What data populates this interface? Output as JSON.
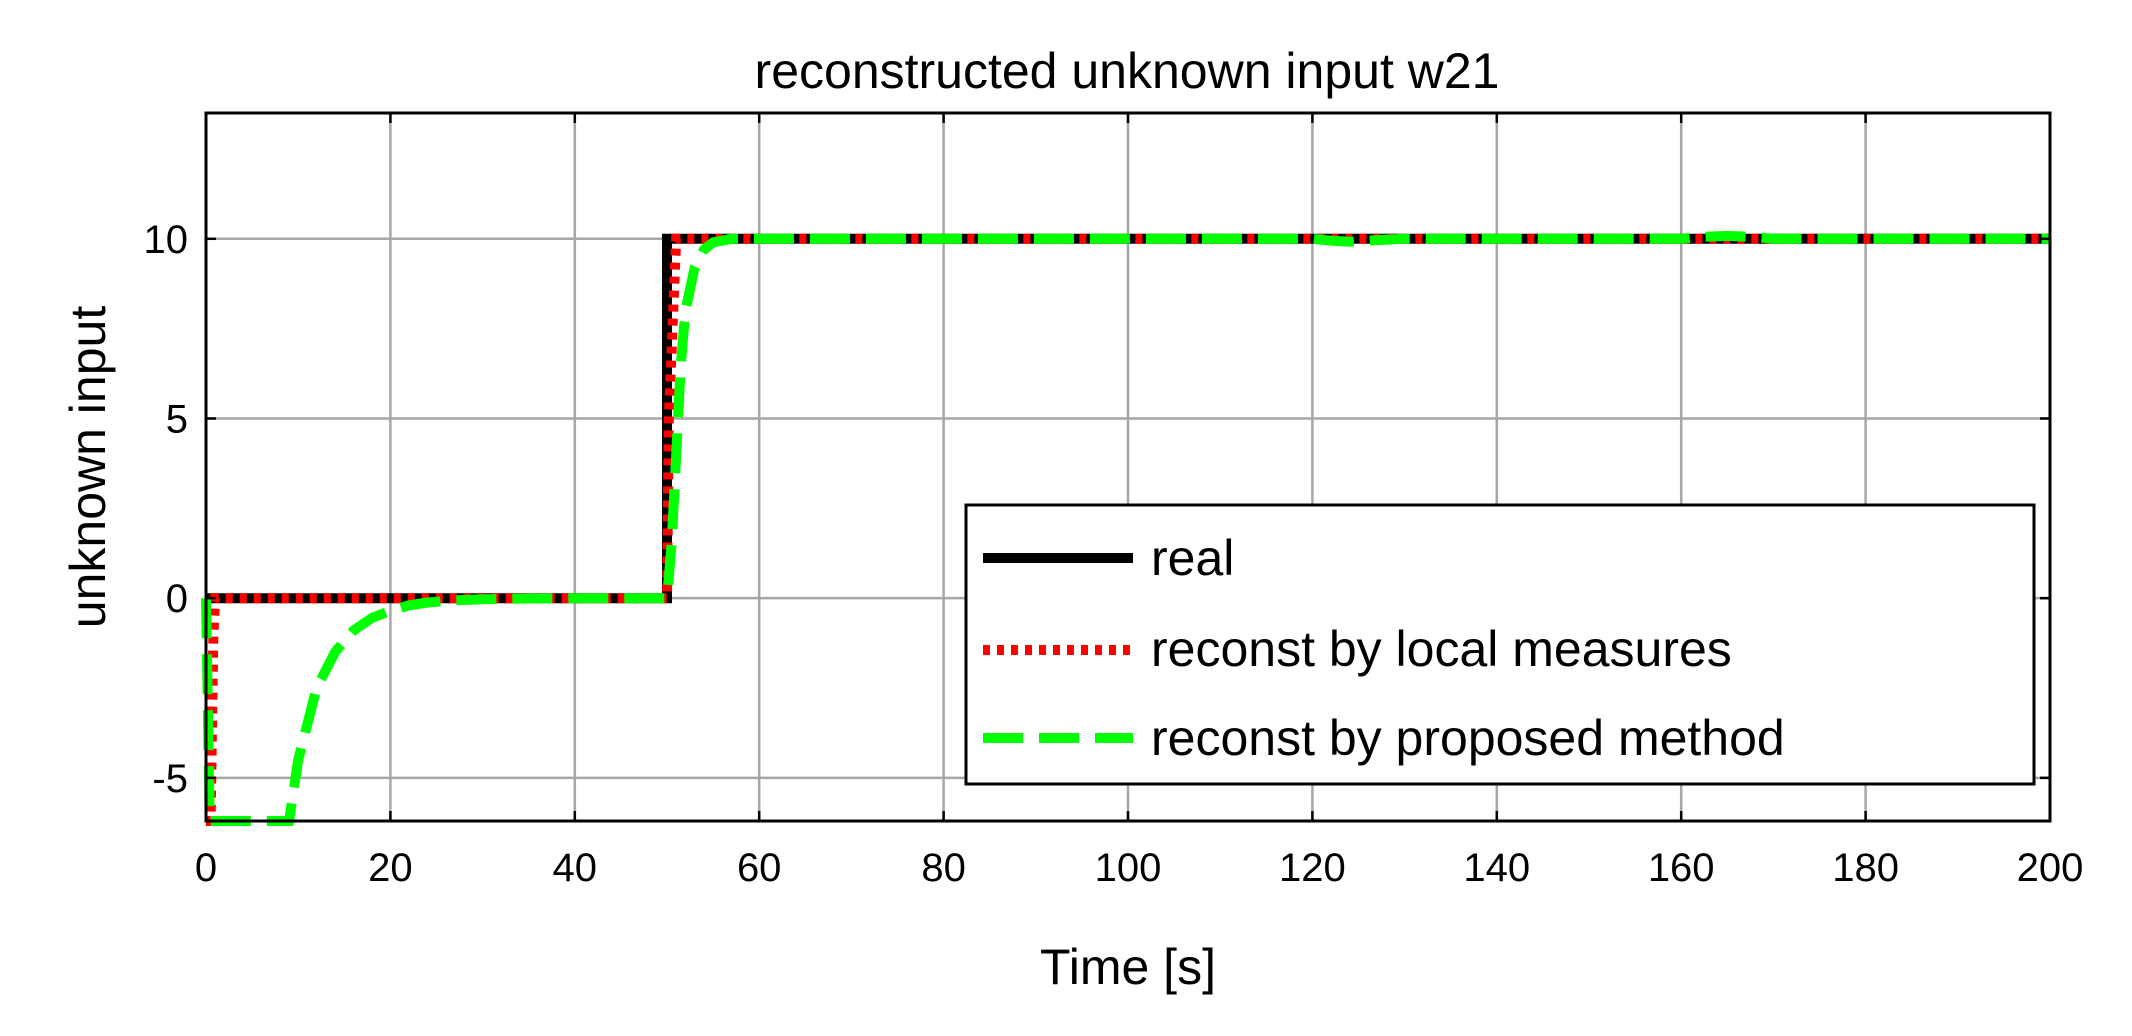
{
  "chart_data": {
    "type": "line",
    "title": "reconstructed unknown input w21",
    "xlabel": "Time [s]",
    "ylabel": "unknown input",
    "xlim": [
      0,
      200
    ],
    "ylim": [
      -6.2,
      13.5
    ],
    "x_ticks": [
      0,
      20,
      40,
      60,
      80,
      100,
      120,
      140,
      160,
      180,
      200
    ],
    "y_ticks": [
      -5,
      0,
      5,
      10
    ],
    "grid": true,
    "legend_position": "lower-right",
    "series": [
      {
        "name": "real",
        "color": "#000000",
        "style": "solid",
        "x": [
          0,
          50,
          50,
          200
        ],
        "y": [
          0,
          0,
          10,
          10
        ]
      },
      {
        "name": "reconst by local measures",
        "color": "#ff0000",
        "style": "dotted",
        "x": [
          0,
          0.5,
          0.8,
          1,
          50,
          50.2,
          51,
          200
        ],
        "y": [
          -6.2,
          -6.2,
          -1,
          0,
          0,
          5,
          10,
          10
        ]
      },
      {
        "name": "reconst by proposed method",
        "color": "#00ff00",
        "style": "dashed",
        "x": [
          0,
          0.2,
          0.4,
          9,
          10,
          12,
          14,
          16,
          18,
          20,
          22,
          24,
          27,
          30,
          35,
          40,
          50,
          50.5,
          51,
          51.5,
          52,
          53,
          54,
          55,
          57,
          60,
          120,
          122,
          124,
          126,
          130,
          160,
          162,
          165,
          168,
          170,
          200
        ],
        "y": [
          0,
          -3,
          -6.2,
          -6.2,
          -4.5,
          -2.5,
          -1.5,
          -0.9,
          -0.55,
          -0.35,
          -0.2,
          -0.12,
          -0.06,
          -0.03,
          -0.01,
          0,
          0,
          1.5,
          4,
          6.5,
          8,
          9.2,
          9.7,
          9.9,
          10,
          10,
          10,
          9.95,
          9.92,
          9.95,
          10,
          10,
          10.05,
          10.08,
          10.05,
          10,
          10
        ]
      }
    ]
  }
}
